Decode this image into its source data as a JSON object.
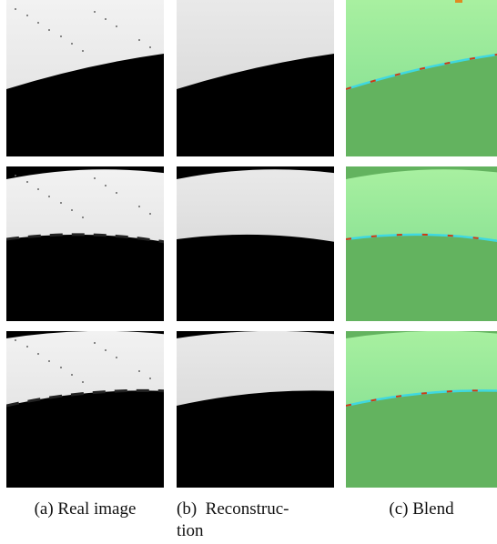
{
  "figure": {
    "captions": [
      {
        "lines": [
          "(a) Real image"
        ]
      },
      {
        "lines": [
          "(b)  Reconstruc-",
          "tion"
        ]
      },
      {
        "lines": [
          "(c) Blend"
        ]
      }
    ]
  }
}
